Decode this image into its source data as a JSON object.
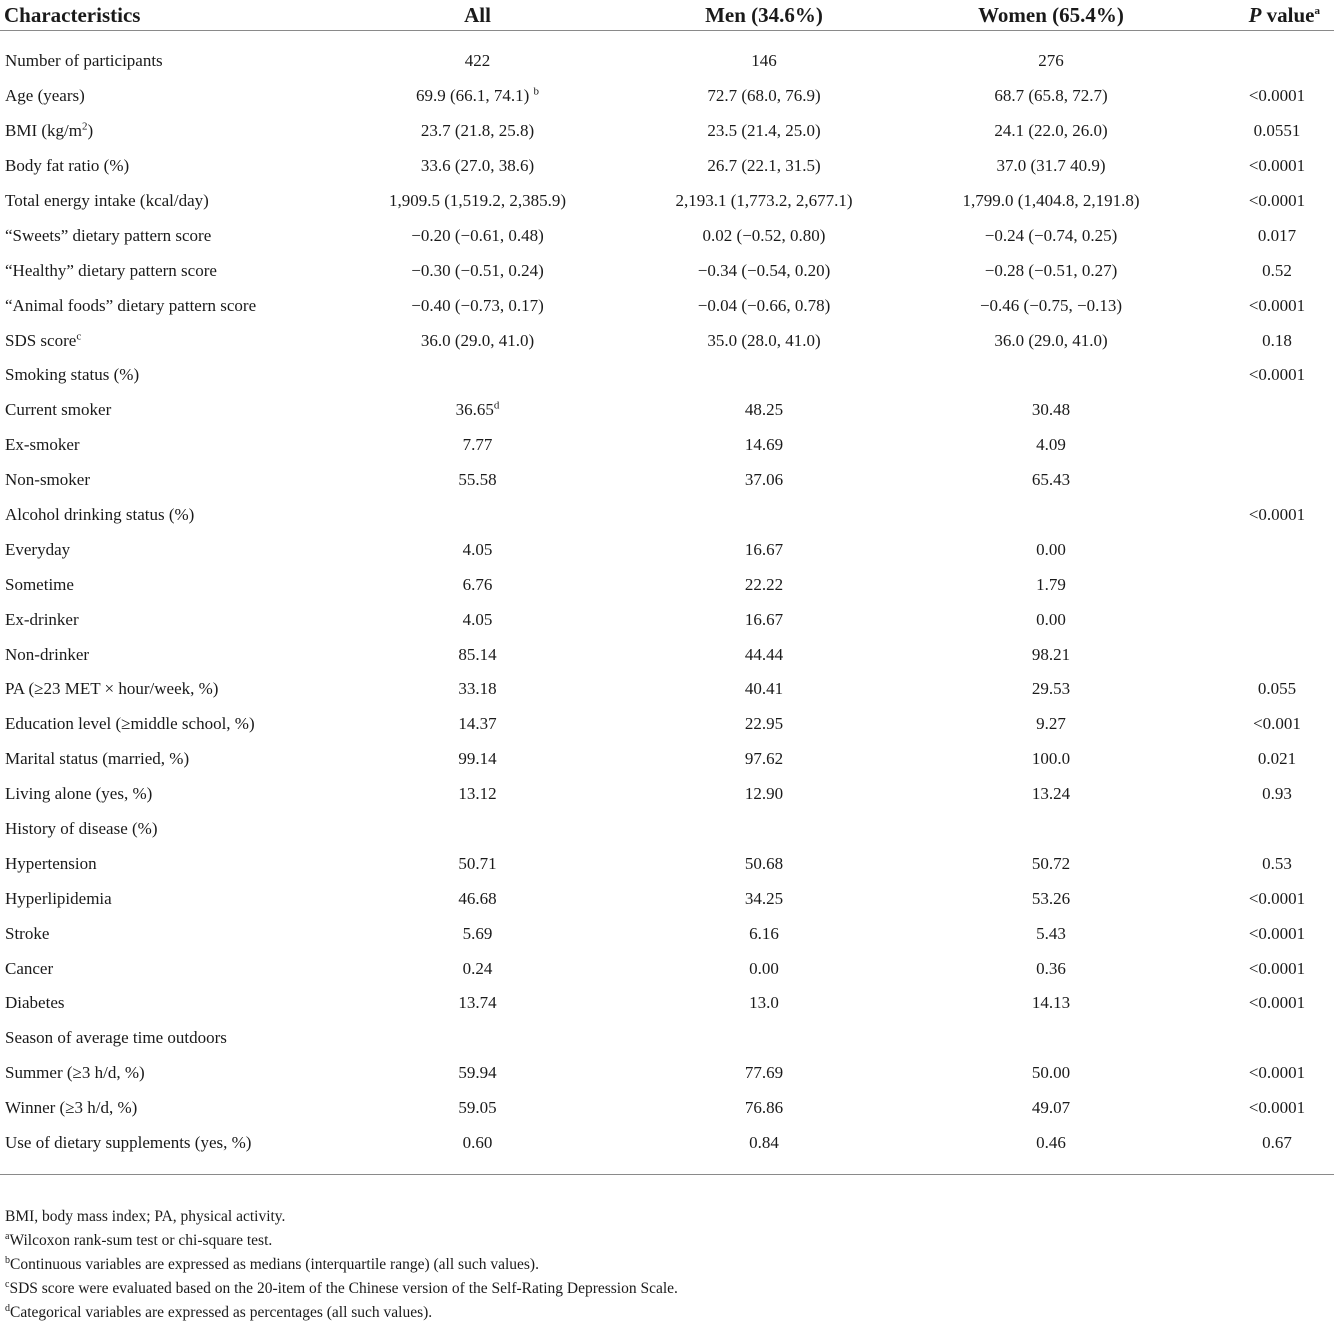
{
  "table": {
    "headers": {
      "characteristics": "Characteristics",
      "all": "All",
      "men": "Men (34.6%)",
      "women": "Women (65.4%)",
      "p_value_italic": "P",
      "p_value_rest": " value",
      "p_value_sup": "a"
    },
    "rows": [
      {
        "label": "Number of participants",
        "all": "422",
        "men": "146",
        "women": "276",
        "p": ""
      },
      {
        "label": "Age (years)",
        "all": "69.9 (66.1, 74.1)",
        "all_sup": "b",
        "men": "72.7 (68.0, 76.9)",
        "women": "68.7 (65.8, 72.7)",
        "p": "<0.0001"
      },
      {
        "label_pre": "BMI (kg/m",
        "label_sup": "2",
        "label_post": ")",
        "all": "23.7 (21.8, 25.8)",
        "men": "23.5 (21.4, 25.0)",
        "women": "24.1 (22.0, 26.0)",
        "p": "0.0551"
      },
      {
        "label": "Body fat ratio (%)",
        "all": "33.6 (27.0, 38.6)",
        "men": "26.7 (22.1, 31.5)",
        "women": "37.0 (31.7 40.9)",
        "p": "<0.0001"
      },
      {
        "label": "Total energy intake (kcal/day)",
        "all": "1,909.5 (1,519.2, 2,385.9)",
        "men": "2,193.1 (1,773.2, 2,677.1)",
        "women": "1,799.0 (1,404.8, 2,191.8)",
        "p": "<0.0001"
      },
      {
        "label": "“Sweets” dietary pattern score",
        "all": "−0.20 (−0.61, 0.48)",
        "men": "0.02 (−0.52, 0.80)",
        "women": "−0.24 (−0.74, 0.25)",
        "p": "0.017"
      },
      {
        "label": "“Healthy” dietary pattern score",
        "all": "−0.30 (−0.51, 0.24)",
        "men": "−0.34 (−0.54, 0.20)",
        "women": "−0.28 (−0.51, 0.27)",
        "p": "0.52"
      },
      {
        "label": "“Animal foods” dietary pattern score",
        "all": "−0.40 (−0.73, 0.17)",
        "men": "−0.04 (−0.66, 0.78)",
        "women": "−0.46 (−0.75, −0.13)",
        "p": "<0.0001"
      },
      {
        "label_pre": "SDS score",
        "label_sup": "c",
        "label_post": "",
        "all": "36.0 (29.0, 41.0)",
        "men": "35.0 (28.0, 41.0)",
        "women": "36.0 (29.0, 41.0)",
        "p": "0.18"
      },
      {
        "label": "Smoking status (%)",
        "all": "",
        "men": "",
        "women": "",
        "p": "<0.0001"
      },
      {
        "label": "Current smoker",
        "all": "36.65",
        "all_sup": "d",
        "men": "48.25",
        "women": "30.48",
        "p": ""
      },
      {
        "label": "Ex-smoker",
        "all": "7.77",
        "men": "14.69",
        "women": "4.09",
        "p": ""
      },
      {
        "label": "Non-smoker",
        "all": "55.58",
        "men": "37.06",
        "women": "65.43",
        "p": ""
      },
      {
        "label": "Alcohol drinking status (%)",
        "all": "",
        "men": "",
        "women": "",
        "p": "<0.0001"
      },
      {
        "label": "Everyday",
        "all": "4.05",
        "men": "16.67",
        "women": "0.00",
        "p": ""
      },
      {
        "label": "Sometime",
        "all": "6.76",
        "men": "22.22",
        "women": "1.79",
        "p": ""
      },
      {
        "label": "Ex-drinker",
        "all": "4.05",
        "men": "16.67",
        "women": "0.00",
        "p": ""
      },
      {
        "label": "Non-drinker",
        "all": "85.14",
        "men": "44.44",
        "women": "98.21",
        "p": ""
      },
      {
        "label": "PA (≥23 MET × hour/week, %)",
        "all": "33.18",
        "men": "40.41",
        "women": "29.53",
        "p": "0.055"
      },
      {
        "label": "Education level (≥middle school, %)",
        "all": "14.37",
        "men": "22.95",
        "women": "9.27",
        "p": "<0.001"
      },
      {
        "label": "Marital status (married, %)",
        "all": "99.14",
        "men": "97.62",
        "women": "100.0",
        "p": "0.021"
      },
      {
        "label": "Living alone (yes, %)",
        "all": "13.12",
        "men": "12.90",
        "women": "13.24",
        "p": "0.93"
      },
      {
        "label": "History of disease (%)",
        "all": "",
        "men": "",
        "women": "",
        "p": ""
      },
      {
        "label": "Hypertension",
        "all": "50.71",
        "men": "50.68",
        "women": "50.72",
        "p": "0.53"
      },
      {
        "label": "Hyperlipidemia",
        "all": "46.68",
        "men": "34.25",
        "women": "53.26",
        "p": "<0.0001"
      },
      {
        "label": "Stroke",
        "all": "5.69",
        "men": "6.16",
        "women": "5.43",
        "p": "<0.0001"
      },
      {
        "label": "Cancer",
        "all": "0.24",
        "men": "0.00",
        "women": "0.36",
        "p": "<0.0001"
      },
      {
        "label": "Diabetes",
        "all": "13.74",
        "men": "13.0",
        "women": "14.13",
        "p": "<0.0001"
      },
      {
        "label": "Season of average time outdoors",
        "all": "",
        "men": "",
        "women": "",
        "p": ""
      },
      {
        "label": "Summer (≥3 h/d, %)",
        "all": "59.94",
        "men": "77.69",
        "women": "50.00",
        "p": "<0.0001"
      },
      {
        "label": "Winner (≥3 h/d, %)",
        "all": "59.05",
        "men": "76.86",
        "women": "49.07",
        "p": "<0.0001"
      },
      {
        "label": "Use of dietary supplements (yes, %)",
        "all": "0.60",
        "men": "0.84",
        "women": "0.46",
        "p": "0.67"
      }
    ]
  },
  "footnotes": [
    {
      "sup": "",
      "text": "BMI, body mass index; PA, physical activity."
    },
    {
      "sup": "a",
      "text": "Wilcoxon rank-sum test or chi-square test."
    },
    {
      "sup": "b",
      "text": "Continuous variables are expressed as medians (interquartile range) (all such values)."
    },
    {
      "sup": "c",
      "text": "SDS score were evaluated based on the 20-item of the Chinese version of the Self-Rating Depression Scale."
    },
    {
      "sup": "d",
      "text": "Categorical variables are expressed as percentages (all such values)."
    }
  ]
}
